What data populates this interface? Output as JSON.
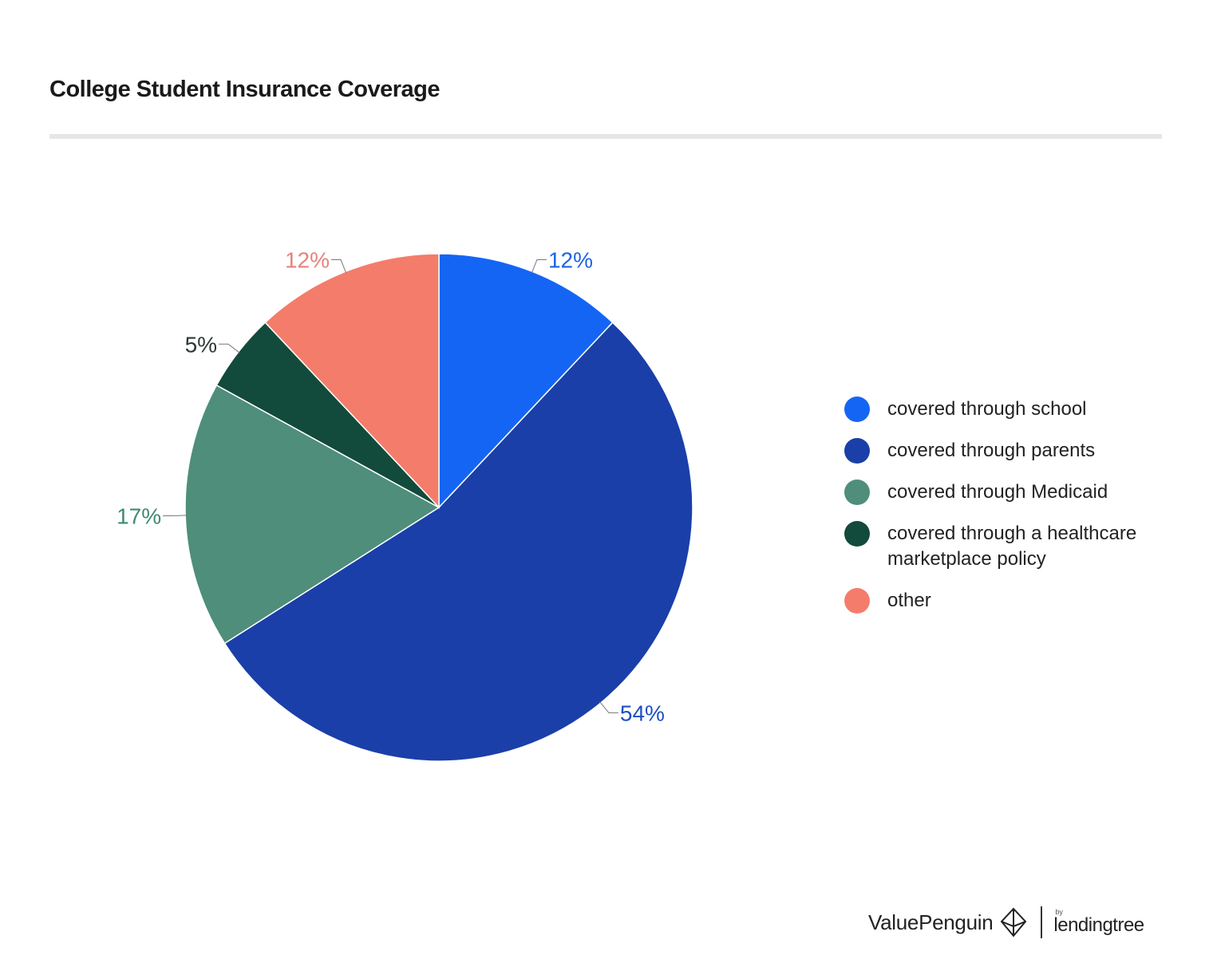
{
  "title": "College Student Insurance Coverage",
  "chart_data": {
    "type": "pie",
    "title": "College Student Insurance Coverage",
    "slices": [
      {
        "name": "covered through school",
        "value": 12,
        "label": "12%",
        "color": "#1565f4"
      },
      {
        "name": "covered through parents",
        "value": 54,
        "label": "54%",
        "color": "#1a3fa8"
      },
      {
        "name": "covered through Medicaid",
        "value": 17,
        "label": "17%",
        "color": "#4e8e7a"
      },
      {
        "name": "covered through a healthcare marketplace policy",
        "value": 5,
        "label": "5%",
        "color": "#124a3b"
      },
      {
        "name": "other",
        "value": 12,
        "label": "12%",
        "color": "#f47c6b"
      }
    ],
    "legend_position": "right",
    "label_colors": [
      "#1e63e6",
      "#1d4fc4",
      "#3f8a73",
      "#2b3a36",
      "#e8827a"
    ]
  },
  "legend": {
    "items": [
      {
        "label": "covered through school"
      },
      {
        "label": "covered through parents"
      },
      {
        "label": "covered through Medicaid"
      },
      {
        "label": "covered through a healthcare marketplace policy"
      },
      {
        "label": "other"
      }
    ]
  },
  "footer": {
    "brand": "ValuePenguin",
    "by": "by",
    "partner": "lendingtree"
  }
}
